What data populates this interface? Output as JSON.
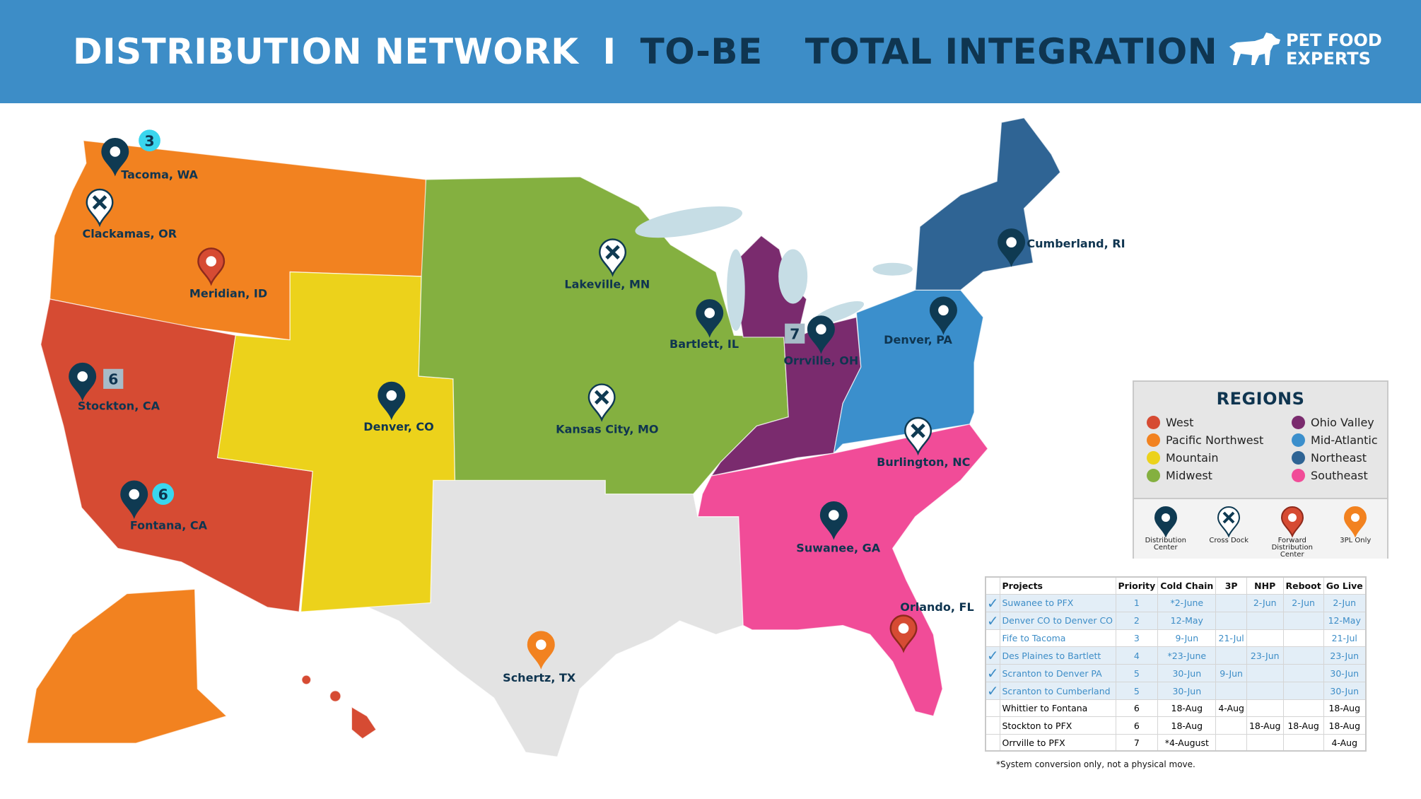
{
  "header": {
    "title_part1": "DISTRIBUTION NETWORK",
    "separator": "I",
    "title_part2": "TO-BE",
    "title_part3": "TOTAL INTEGRATION",
    "logo_line1": "PET FOOD",
    "logo_line2": "EXPERTS",
    "logo_icon": "dog-icon"
  },
  "region_colors": {
    "West": "#d64b33",
    "Pacific Northwest": "#f28220",
    "Mountain": "#ecd21b",
    "Midwest": "#84b040",
    "Ohio Valley": "#7a2b6e",
    "Mid-Atlantic": "#3b8fcc",
    "Northeast": "#2f6494",
    "Southeast": "#f14c98",
    "Other": "#e3e3e3",
    "Lakes": "#c6dde5"
  },
  "locations": [
    {
      "name": "Tacoma, WA",
      "type": "distribution-center",
      "badge": "3",
      "badge_style": "circle"
    },
    {
      "name": "Clackamas, OR",
      "type": "cross-dock"
    },
    {
      "name": "Meridian, ID",
      "type": "forward-distribution-center"
    },
    {
      "name": "Stockton, CA",
      "type": "distribution-center",
      "badge": "6",
      "badge_style": "square"
    },
    {
      "name": "Fontana, CA",
      "type": "distribution-center",
      "badge": "6",
      "badge_style": "circle"
    },
    {
      "name": "Denver, CO",
      "type": "distribution-center"
    },
    {
      "name": "Lakeville, MN",
      "type": "cross-dock"
    },
    {
      "name": "Kansas City, MO",
      "type": "cross-dock"
    },
    {
      "name": "Bartlett, IL",
      "type": "distribution-center"
    },
    {
      "name": "Orrville, OH",
      "type": "distribution-center",
      "badge": "7",
      "badge_style": "square"
    },
    {
      "name": "Denver, PA",
      "type": "distribution-center"
    },
    {
      "name": "Cumberland, RI",
      "type": "distribution-center"
    },
    {
      "name": "Burlington, NC",
      "type": "cross-dock"
    },
    {
      "name": "Suwanee, GA",
      "type": "distribution-center"
    },
    {
      "name": "Orlando, FL",
      "type": "forward-distribution-center"
    },
    {
      "name": "Schertz, TX",
      "type": "3pl-only"
    }
  ],
  "legend": {
    "title": "REGIONS",
    "regions": [
      {
        "label": "West",
        "color": "#d64b33"
      },
      {
        "label": "Ohio Valley",
        "color": "#7a2b6e"
      },
      {
        "label": "Pacific Northwest",
        "color": "#f28220"
      },
      {
        "label": "Mid-Atlantic",
        "color": "#3b8fcc"
      },
      {
        "label": "Mountain",
        "color": "#ecd21b"
      },
      {
        "label": "Northeast",
        "color": "#2f6494"
      },
      {
        "label": "Midwest",
        "color": "#84b040"
      },
      {
        "label": "Southeast",
        "color": "#f14c98"
      }
    ],
    "pin_types": [
      {
        "label": "Distribution Center",
        "type": "distribution-center",
        "color": "#0f3a52"
      },
      {
        "label": "Cross Dock",
        "type": "cross-dock",
        "color": "#ffffff"
      },
      {
        "label": "Forward Distribution Center",
        "type": "forward-distribution-center",
        "color": "#d64b33"
      },
      {
        "label": "3PL Only",
        "type": "3pl-only",
        "color": "#f28220"
      }
    ]
  },
  "table": {
    "headers": [
      "Projects",
      "Priority",
      "Cold Chain",
      "3P",
      "NHP",
      "Reboot",
      "Go Live"
    ],
    "rows": [
      {
        "done": true,
        "highlight": true,
        "shaded": true,
        "cells": [
          "Suwanee to PFX",
          "1",
          "*2-June",
          "",
          "2-Jun",
          "2-Jun",
          "2-Jun"
        ]
      },
      {
        "done": true,
        "highlight": true,
        "shaded": true,
        "cells": [
          "Denver CO to Denver CO",
          "2",
          "12-May",
          "",
          "",
          "",
          "12-May"
        ]
      },
      {
        "done": false,
        "highlight": true,
        "shaded": false,
        "cells": [
          "Fife to Tacoma",
          "3",
          "9-Jun",
          "21-Jul",
          "",
          "",
          "21-Jul"
        ]
      },
      {
        "done": true,
        "highlight": true,
        "shaded": true,
        "cells": [
          "Des Plaines to Bartlett",
          "4",
          "*23-June",
          "",
          "23-Jun",
          "",
          "23-Jun"
        ]
      },
      {
        "done": true,
        "highlight": true,
        "shaded": true,
        "cells": [
          "Scranton to Denver PA",
          "5",
          "30-Jun",
          "9-Jun",
          "",
          "",
          "30-Jun"
        ]
      },
      {
        "done": true,
        "highlight": true,
        "shaded": true,
        "cells": [
          "Scranton to Cumberland",
          "5",
          "30-Jun",
          "",
          "",
          "",
          "30-Jun"
        ]
      },
      {
        "done": false,
        "highlight": false,
        "shaded": false,
        "cells": [
          "Whittier to Fontana",
          "6",
          "18-Aug",
          "4-Aug",
          "",
          "",
          "18-Aug"
        ]
      },
      {
        "done": false,
        "highlight": false,
        "shaded": false,
        "cells": [
          "Stockton to PFX",
          "6",
          "18-Aug",
          "",
          "18-Aug",
          "18-Aug",
          "18-Aug"
        ]
      },
      {
        "done": false,
        "highlight": false,
        "shaded": false,
        "cells": [
          "Orrville to PFX",
          "7",
          "*4-August",
          "",
          "",
          "",
          "4-Aug"
        ]
      }
    ],
    "check_icon": "checkmark-icon",
    "footnote": "*System conversion only, not a physical move."
  }
}
